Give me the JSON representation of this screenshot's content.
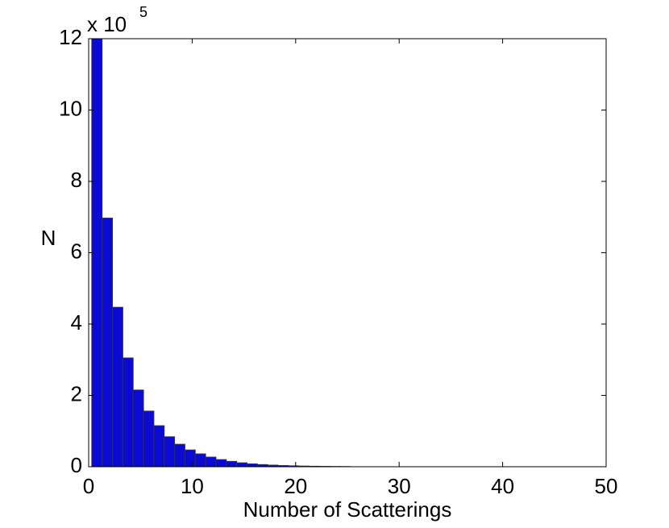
{
  "chart_data": {
    "type": "histogram",
    "x_label": "Number of Scatterings",
    "y_label": "N",
    "y_multiplier": "x 10",
    "y_multiplier_exponent": "5",
    "bins": [
      0.3,
      1.3,
      2.3,
      3.3,
      4.3,
      5.3,
      6.3,
      7.3,
      8.3,
      9.3,
      10.3,
      11.3,
      12.3,
      13.3,
      14.3,
      15.3,
      16.3,
      17.3,
      18.3,
      19.3,
      20.3,
      21.3,
      22.3,
      23.3,
      24.3,
      25.3
    ],
    "values": [
      12,
      6.97,
      4.47,
      3.05,
      2.15,
      1.56,
      1.15,
      0.84,
      0.63,
      0.47,
      0.36,
      0.27,
      0.2,
      0.15,
      0.11,
      0.08,
      0.06,
      0.045,
      0.033,
      0.025,
      0.018,
      0.013,
      0.01,
      0.007,
      0.005
    ],
    "color": "#0a0ad2",
    "edge_color": "#333333",
    "xlim": [
      0,
      50
    ],
    "xticks": [
      0,
      10,
      20,
      30,
      40,
      50
    ],
    "ylim": [
      0,
      12
    ],
    "yticks": [
      0,
      2,
      4,
      6,
      8,
      10,
      12
    ],
    "grid": false
  }
}
